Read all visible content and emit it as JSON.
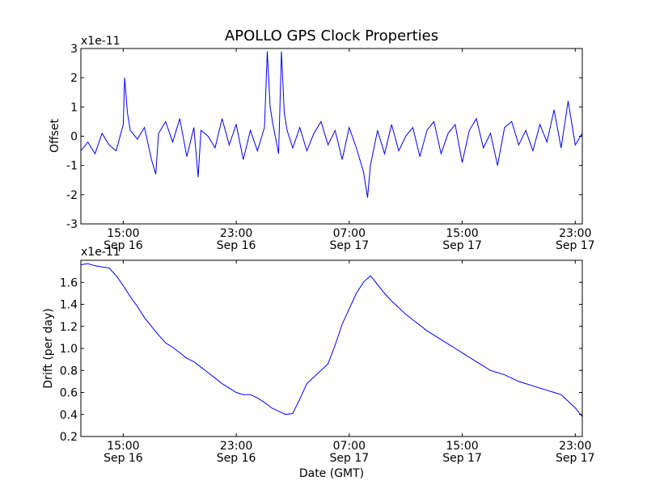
{
  "figure": {
    "title": "APOLLO GPS Clock Properties",
    "series_color": "#0000ff"
  },
  "x_ticks": [
    {
      "time": "15:00",
      "date": "Sep 16",
      "hours": 15
    },
    {
      "time": "23:00",
      "date": "Sep 16",
      "hours": 23
    },
    {
      "time": "07:00",
      "date": "Sep 17",
      "hours": 31
    },
    {
      "time": "15:00",
      "date": "Sep 17",
      "hours": 39
    },
    {
      "time": "23:00",
      "date": "Sep 17",
      "hours": 47
    }
  ],
  "chart_data": [
    {
      "type": "line",
      "title": "APOLLO GPS Clock Properties",
      "ylabel": "Offset",
      "xlabel": "",
      "scale_note": "x1e-11",
      "xlim_hours": [
        12,
        47.5
      ],
      "ylim": [
        -3,
        3
      ],
      "yticks": [
        -3,
        -2,
        -1,
        0,
        1,
        2,
        3
      ],
      "grid": false,
      "series": [
        {
          "color": "#0000ff",
          "x_hours": [
            12,
            12.5,
            13,
            13.5,
            14,
            14.5,
            15,
            15.1,
            15.3,
            15.5,
            16,
            16.5,
            17,
            17.3,
            17.5,
            18,
            18.5,
            19,
            19.5,
            20,
            20.3,
            20.5,
            21,
            21.5,
            22,
            22.5,
            23,
            23.5,
            24,
            24.5,
            25,
            25.2,
            25.4,
            25.6,
            26,
            26.2,
            26.4,
            26.6,
            27,
            27.5,
            28,
            28.5,
            29,
            29.5,
            30,
            30.5,
            31,
            31.5,
            32,
            32.3,
            32.5,
            33,
            33.5,
            34,
            34.5,
            35,
            35.5,
            36,
            36.5,
            37,
            37.5,
            38,
            38.5,
            39,
            39.5,
            40,
            40.5,
            41,
            41.5,
            42,
            42.5,
            43,
            43.5,
            44,
            44.5,
            45,
            45.5,
            46,
            46.5,
            47,
            47.5
          ],
          "values": [
            -0.5,
            -0.2,
            -0.6,
            0.1,
            -0.3,
            -0.5,
            0.4,
            2.0,
            0.8,
            0.2,
            -0.1,
            0.3,
            -0.8,
            -1.3,
            0.1,
            0.5,
            -0.2,
            0.6,
            -0.7,
            0.3,
            -1.4,
            0.2,
            0.0,
            -0.4,
            0.6,
            -0.3,
            0.4,
            -0.8,
            0.2,
            -0.5,
            0.3,
            2.9,
            1.0,
            0.4,
            -0.6,
            2.9,
            0.8,
            0.2,
            -0.4,
            0.3,
            -0.5,
            0.1,
            0.5,
            -0.3,
            0.2,
            -0.8,
            0.3,
            -0.4,
            -1.2,
            -2.1,
            -1.0,
            0.2,
            -0.6,
            0.4,
            -0.5,
            0.0,
            0.3,
            -0.7,
            0.2,
            0.5,
            -0.6,
            0.1,
            0.4,
            -0.9,
            0.2,
            0.6,
            -0.4,
            0.1,
            -1.0,
            0.3,
            0.5,
            -0.3,
            0.2,
            -0.5,
            0.4,
            -0.2,
            0.9,
            -0.4,
            1.2,
            -0.3,
            0.1
          ]
        }
      ]
    },
    {
      "type": "line",
      "title": "",
      "ylabel": "Drift (per day)",
      "xlabel": "Date (GMT)",
      "scale_note": "x1e-11",
      "xlim_hours": [
        12,
        47.5
      ],
      "ylim": [
        0.2,
        1.8
      ],
      "yticks": [
        0.2,
        0.4,
        0.6,
        0.8,
        1.0,
        1.2,
        1.4,
        1.6
      ],
      "grid": false,
      "series": [
        {
          "color": "#0000ff",
          "x_hours": [
            12,
            12.5,
            13,
            13.5,
            14,
            14.5,
            15,
            15.5,
            16,
            16.5,
            17,
            17.5,
            18,
            18.5,
            19,
            19.5,
            20,
            20.5,
            21,
            21.5,
            22,
            22.5,
            23,
            23.5,
            24,
            24.5,
            25,
            25.5,
            26,
            26.5,
            27,
            27.5,
            28,
            28.5,
            29,
            29.5,
            30,
            30.5,
            31,
            31.5,
            32,
            32.5,
            33,
            33.5,
            34,
            34.5,
            35,
            35.5,
            36,
            36.5,
            37,
            37.5,
            38,
            38.5,
            39,
            39.5,
            40,
            40.5,
            41,
            41.5,
            42,
            42.5,
            43,
            43.5,
            44,
            44.5,
            45,
            45.5,
            46,
            46.5,
            47,
            47.5
          ],
          "values": [
            1.76,
            1.77,
            1.75,
            1.74,
            1.73,
            1.66,
            1.57,
            1.47,
            1.38,
            1.28,
            1.2,
            1.12,
            1.05,
            1.01,
            0.96,
            0.91,
            0.88,
            0.83,
            0.78,
            0.73,
            0.68,
            0.64,
            0.6,
            0.58,
            0.58,
            0.55,
            0.51,
            0.46,
            0.43,
            0.4,
            0.41,
            0.54,
            0.68,
            0.74,
            0.8,
            0.86,
            1.03,
            1.22,
            1.36,
            1.5,
            1.6,
            1.66,
            1.58,
            1.5,
            1.43,
            1.37,
            1.31,
            1.26,
            1.21,
            1.16,
            1.12,
            1.08,
            1.04,
            1.0,
            0.96,
            0.92,
            0.88,
            0.84,
            0.8,
            0.78,
            0.76,
            0.73,
            0.7,
            0.68,
            0.66,
            0.64,
            0.62,
            0.6,
            0.58,
            0.52,
            0.46,
            0.38
          ]
        }
      ]
    }
  ]
}
